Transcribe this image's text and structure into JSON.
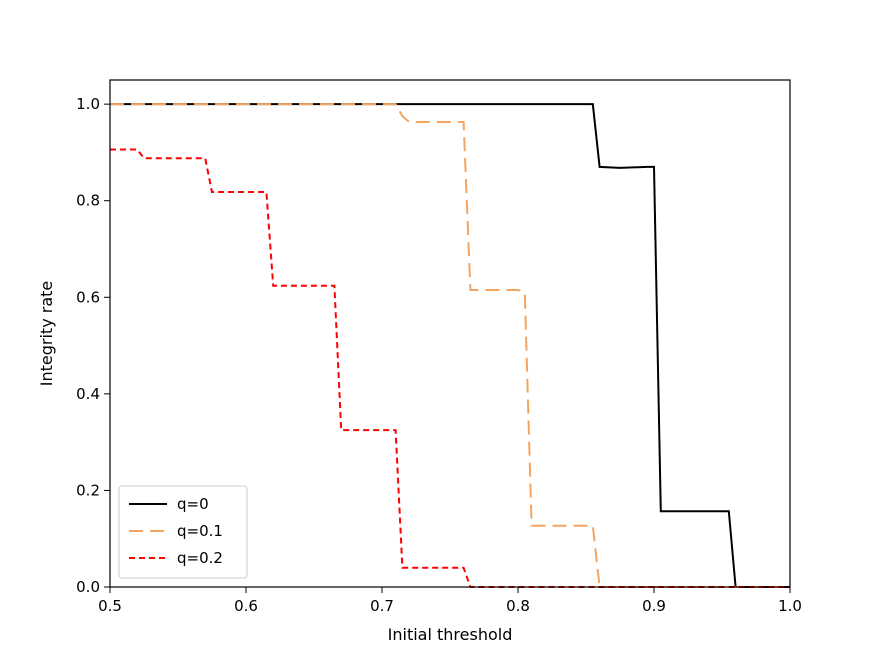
{
  "chart_data": {
    "type": "line",
    "title": "",
    "xlabel": "Initial threshold",
    "ylabel": "Integrity rate",
    "xlim": [
      0.5,
      1.0
    ],
    "ylim": [
      0.0,
      1.05
    ],
    "xticks": [
      0.5,
      0.6,
      0.7,
      0.8,
      0.9,
      1.0
    ],
    "xtick_labels": [
      "0.5",
      "0.6",
      "0.7",
      "0.8",
      "0.9",
      "1.0"
    ],
    "yticks": [
      0.0,
      0.2,
      0.4,
      0.6,
      0.8,
      1.0
    ],
    "ytick_labels": [
      "0.0",
      "0.2",
      "0.4",
      "0.6",
      "0.8",
      "1.0"
    ],
    "grid": false,
    "legend_position": "lower-left",
    "series": [
      {
        "name": "q=0",
        "color": "#000000",
        "style": "solid",
        "x": [
          0.5,
          0.855,
          0.86,
          0.875,
          0.895,
          0.9,
          0.905,
          0.955,
          0.96,
          1.0
        ],
        "y": [
          1.0,
          1.0,
          0.87,
          0.868,
          0.87,
          0.87,
          0.157,
          0.157,
          0.0,
          0.0
        ]
      },
      {
        "name": "q=0.1",
        "color": "#f5a460",
        "style": "dashed",
        "x": [
          0.5,
          0.71,
          0.715,
          0.72,
          0.76,
          0.765,
          0.8,
          0.805,
          0.81,
          0.855,
          0.86,
          1.0
        ],
        "y": [
          1.0,
          1.0,
          0.975,
          0.963,
          0.963,
          0.615,
          0.615,
          0.61,
          0.127,
          0.127,
          0.0,
          0.0
        ]
      },
      {
        "name": "q=0.2",
        "color": "#ff0000",
        "style": "dotted",
        "x": [
          0.5,
          0.52,
          0.525,
          0.57,
          0.575,
          0.615,
          0.62,
          0.665,
          0.67,
          0.71,
          0.715,
          0.76,
          0.765,
          1.0
        ],
        "y": [
          0.906,
          0.906,
          0.888,
          0.888,
          0.818,
          0.818,
          0.624,
          0.624,
          0.325,
          0.325,
          0.04,
          0.04,
          0.0,
          0.0
        ]
      }
    ]
  }
}
